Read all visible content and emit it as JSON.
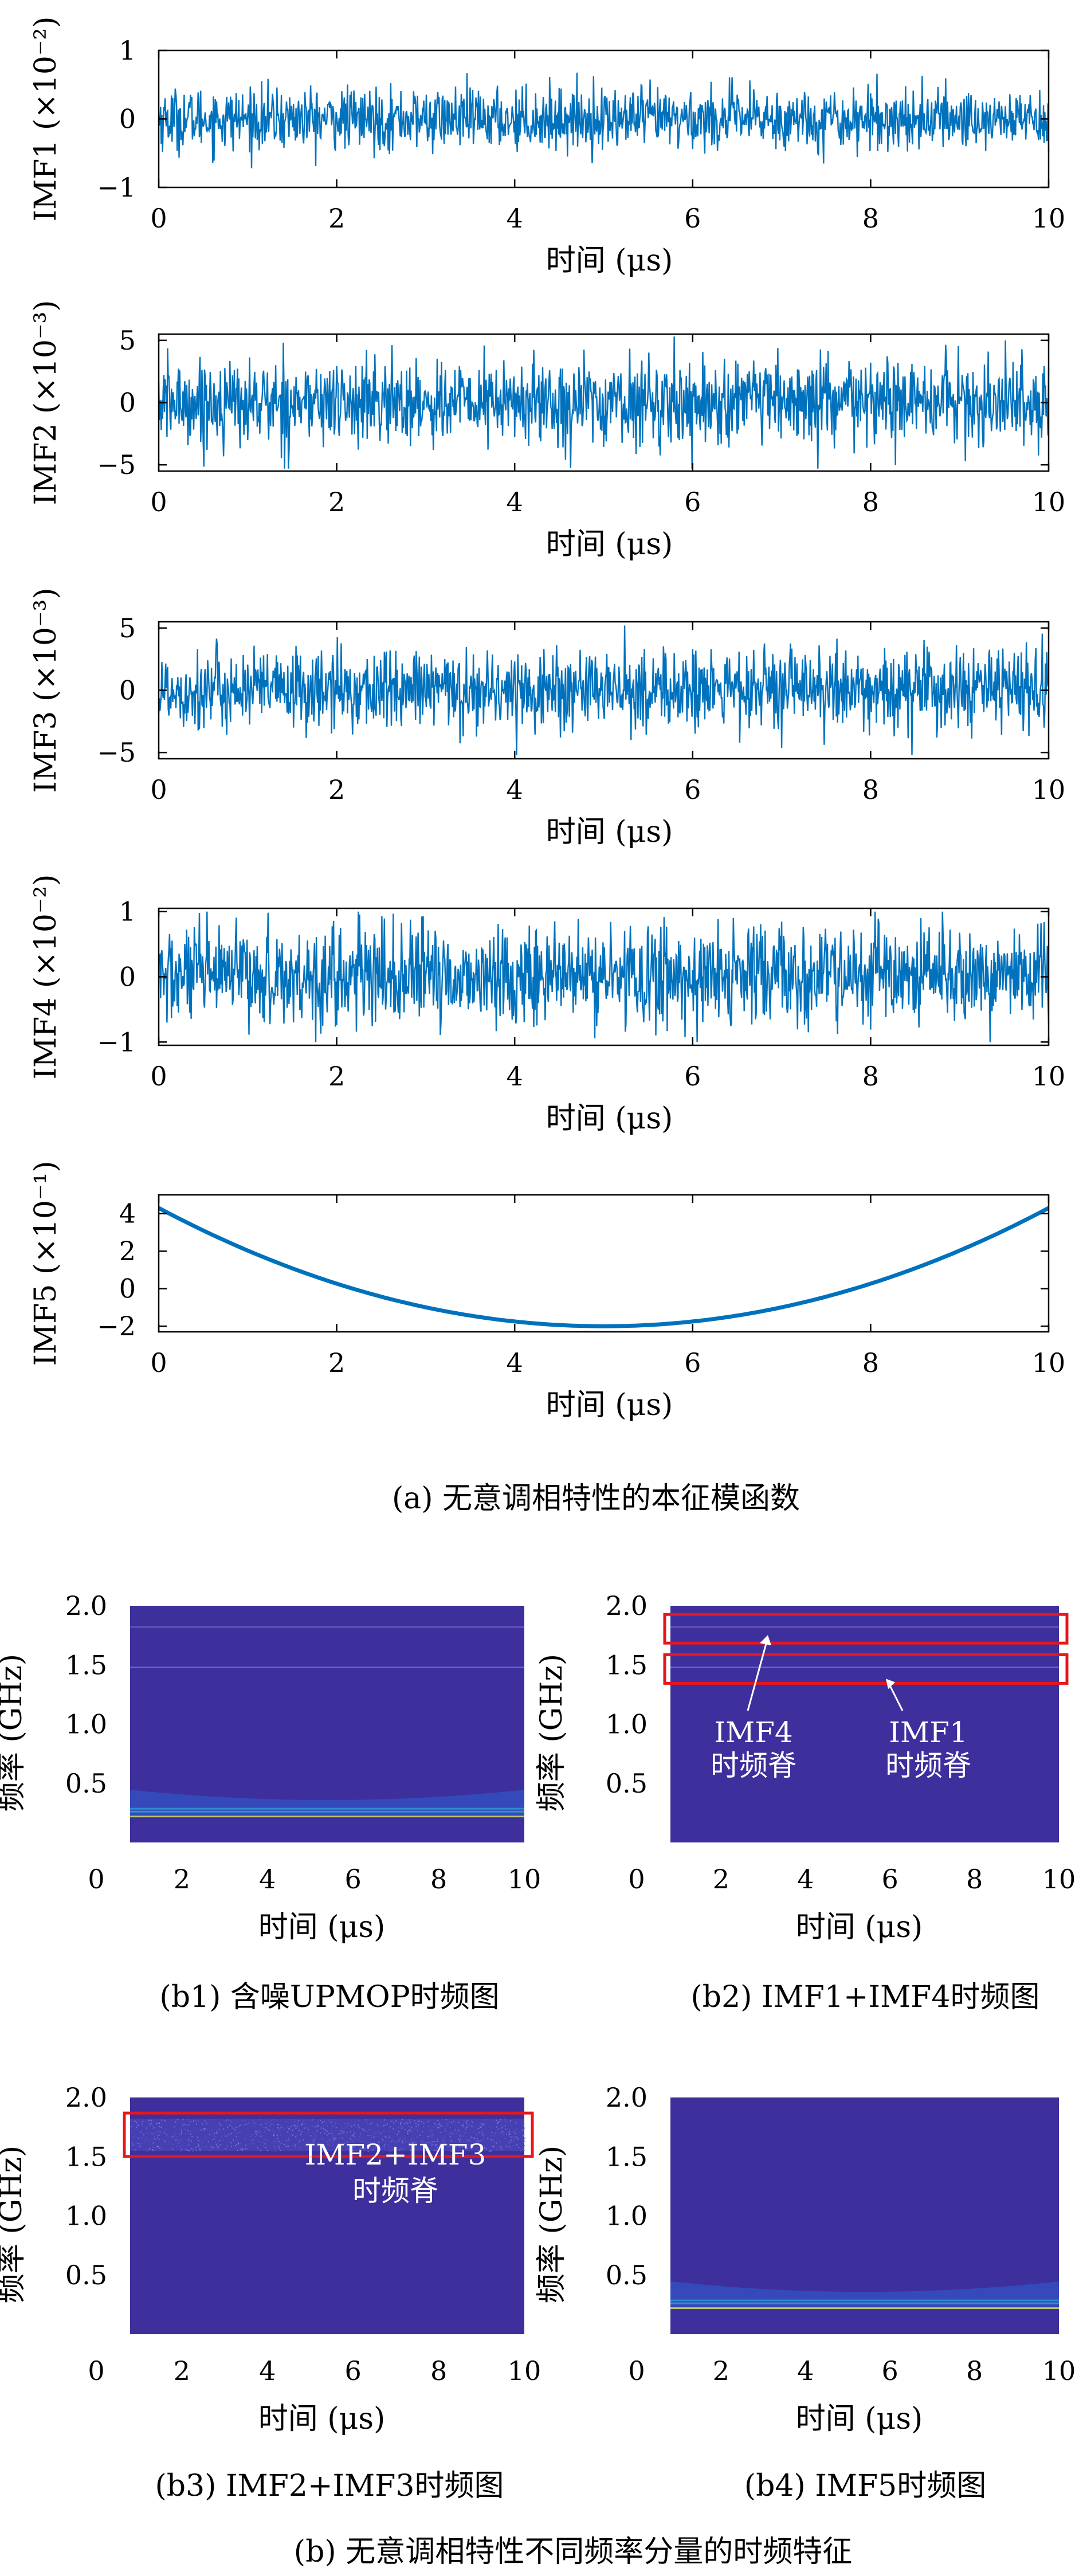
{
  "chart_data": [
    {
      "type": "line",
      "id": "imf1",
      "ylabel": "IMF1 (×10⁻²)",
      "xlabel": "时间 (μs)",
      "xlim": [
        0,
        10
      ],
      "ylim": [
        -1,
        1
      ],
      "x_ticks": [
        "0",
        "2",
        "4",
        "6",
        "8",
        "10"
      ],
      "y_ticks": [
        "1",
        "0",
        "−1"
      ],
      "signal": "noise",
      "amplitude": 0.5,
      "peak": 0.72,
      "color": "#0072BD"
    },
    {
      "type": "line",
      "id": "imf2",
      "ylabel": "IMF2 (×10⁻³)",
      "xlabel": "时间 (μs)",
      "xlim": [
        0,
        10
      ],
      "ylim": [
        -5.5,
        5.5
      ],
      "x_ticks": [
        "0",
        "2",
        "4",
        "6",
        "8",
        "10"
      ],
      "y_ticks": [
        "5",
        "0",
        "−5"
      ],
      "signal": "noise",
      "amplitude": 3.8,
      "peak": 5.3,
      "color": "#0072BD"
    },
    {
      "type": "line",
      "id": "imf3",
      "ylabel": "IMF3 (×10⁻³)",
      "xlabel": "时间 (μs)",
      "xlim": [
        0,
        10
      ],
      "ylim": [
        -5.5,
        5.5
      ],
      "x_ticks": [
        "0",
        "2",
        "4",
        "6",
        "8",
        "10"
      ],
      "y_ticks": [
        "5",
        "0",
        "−5"
      ],
      "signal": "noise",
      "amplitude": 3.6,
      "peak": 5.2,
      "color": "#0072BD"
    },
    {
      "type": "line",
      "id": "imf4",
      "ylabel": "IMF4 (×10⁻²)",
      "xlabel": "时间 (μs)",
      "xlim": [
        0,
        10
      ],
      "ylim": [
        -1.05,
        1.05
      ],
      "x_ticks": [
        "0",
        "2",
        "4",
        "6",
        "8",
        "10"
      ],
      "y_ticks": [
        "1",
        "0",
        "−1"
      ],
      "signal": "noise",
      "amplitude": 0.85,
      "peak": 1.0,
      "color": "#0072BD"
    },
    {
      "type": "line",
      "id": "imf5",
      "ylabel": "IMF5 (×10⁻¹)",
      "xlabel": "时间 (μs)",
      "xlim": [
        0,
        10
      ],
      "ylim": [
        -2.3,
        5.0
      ],
      "x_ticks": [
        "0",
        "2",
        "4",
        "6",
        "8",
        "10"
      ],
      "y_ticks": [
        "4",
        "2",
        "0",
        "−2"
      ],
      "signal": "parabola",
      "curve": {
        "vertex_x": 5,
        "vertex_y": -2.0,
        "edge_y": 4.3
      },
      "color": "#0072BD"
    },
    {
      "type": "heatmap",
      "id": "b1",
      "ylabel": "频率 (GHz)",
      "xlabel": "时间 (μs)",
      "xlim": [
        0,
        10
      ],
      "ylim": [
        0,
        2.0
      ],
      "x_ticks": [
        "0",
        "2",
        "4",
        "6",
        "8",
        "10"
      ],
      "y_ticks": [
        "2.0",
        "1.5",
        "1.0",
        "0.5"
      ],
      "ridges": [
        1.82,
        1.48,
        0.26,
        0.22
      ]
    },
    {
      "type": "heatmap",
      "id": "b2",
      "ylabel": "频率 (GHz)",
      "xlabel": "时间 (μs)",
      "xlim": [
        0,
        10
      ],
      "ylim": [
        0,
        2.0
      ],
      "x_ticks": [
        "0",
        "2",
        "4",
        "6",
        "8",
        "10"
      ],
      "y_ticks": [
        "2.0",
        "1.5",
        "1.0",
        "0.5"
      ],
      "ridges": [
        1.82,
        1.48
      ],
      "annotations": [
        {
          "text": [
            "IMF4",
            "时频脊"
          ],
          "target_ghz": 1.82
        },
        {
          "text": [
            "IMF1",
            "时频脊"
          ],
          "target_ghz": 1.48
        }
      ]
    },
    {
      "type": "heatmap",
      "id": "b3",
      "ylabel": "频率 (GHz)",
      "xlabel": "时间 (μs)",
      "xlim": [
        0,
        10
      ],
      "ylim": [
        0,
        2.0
      ],
      "x_ticks": [
        "0",
        "2",
        "4",
        "6",
        "8",
        "10"
      ],
      "y_ticks": [
        "2.0",
        "1.5",
        "1.0",
        "0.5"
      ],
      "band": [
        1.55,
        1.82
      ],
      "annotations": [
        {
          "text": [
            "IMF2+IMF3",
            "时频脊"
          ]
        }
      ]
    },
    {
      "type": "heatmap",
      "id": "b4",
      "ylabel": "频率 (GHz)",
      "xlabel": "时间 (μs)",
      "xlim": [
        0,
        10
      ],
      "ylim": [
        0,
        2.0
      ],
      "x_ticks": [
        "0",
        "2",
        "4",
        "6",
        "8",
        "10"
      ],
      "y_ticks": [
        "2.0",
        "1.5",
        "1.0",
        "0.5"
      ],
      "ridges": [
        0.26,
        0.22
      ]
    }
  ],
  "captions": {
    "a": "(a) 无意调相特性的本征模函数",
    "b1": "(b1) 含噪UPMOP时频图",
    "b2": "(b2) IMF1+IMF4时频图",
    "b3": "(b3) IMF2+IMF3时频图",
    "b4": "(b4) IMF5时频图",
    "b": "(b) 无意调相特性不同频率分量的时频特征"
  },
  "colors": {
    "line": "#0072BD",
    "heat_bg": "#3d2f9c",
    "highlight_box": "#e8151b"
  }
}
